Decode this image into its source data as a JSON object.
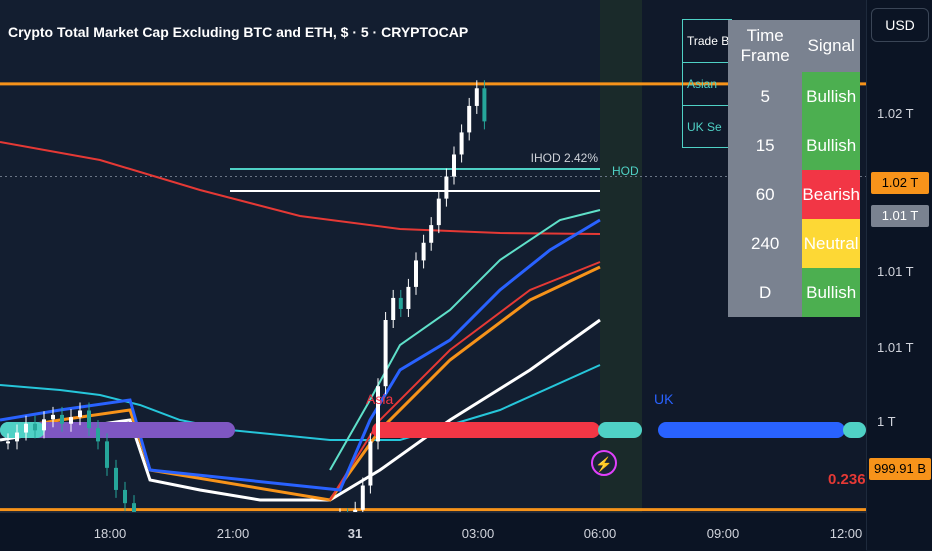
{
  "title": "Crypto Total Market Cap Excluding BTC and ETH, $ · 5 · CRYPTOCAP",
  "currency": "USD",
  "price_ticks": [
    "1.02 T",
    "1.01 T",
    "1.01 T",
    "1 T"
  ],
  "price_badges": [
    {
      "label": "1.02 T",
      "bg": "#f7931a",
      "fg": "#000000"
    },
    {
      "label": "1.01 T",
      "bg": "#7a8290",
      "fg": "#ffffff"
    },
    {
      "label": "999.91 B",
      "bg": "#f7931a",
      "fg": "#000000"
    }
  ],
  "time_ticks": [
    "18:00",
    "21:00",
    "31",
    "03:00",
    "06:00",
    "09:00",
    "12:00"
  ],
  "annotations": {
    "ihod": "IHOD 2.42%",
    "hod": "HOD",
    "fib": "0.236",
    "session_asia": "Asia",
    "session_uk": "UK"
  },
  "trade_box": {
    "header": "Trade By",
    "rows": [
      "Asian",
      "UK Se"
    ]
  },
  "signal_table": {
    "headers": [
      "Time Frame",
      "Signal"
    ],
    "rows": [
      {
        "tf": "5",
        "signal": "Bullish",
        "color": "#4caf50",
        "text": "#ffffff"
      },
      {
        "tf": "15",
        "signal": "Bullish",
        "color": "#4caf50",
        "text": "#ffffff"
      },
      {
        "tf": "60",
        "signal": "Bearish",
        "color": "#f23645",
        "text": "#ffffff"
      },
      {
        "tf": "240",
        "signal": "Neutral",
        "color": "#fdd835",
        "text": "#ffffff"
      },
      {
        "tf": "D",
        "signal": "Bullish",
        "color": "#4caf50",
        "text": "#ffffff"
      }
    ]
  },
  "colors": {
    "up": "#ffffff",
    "down": "#26a69a",
    "orange": "#f7931a",
    "red_ma": "#e53935",
    "blue_ma": "#2962ff",
    "teal_ma": "#26c6da",
    "asia_band": "#f23645",
    "uk_band": "#2962ff",
    "purple_band": "#7e57c2"
  },
  "chart_data": {
    "type": "candlestick",
    "title": "Crypto Total Market Cap Excluding BTC and ETH, $ · 5 · CRYPTOCAP",
    "y_unit": "USD",
    "ylim": [
      999800000000.0,
      1023000000000.0
    ],
    "x_ticks": [
      "18:00",
      "21:00",
      "31",
      "03:00",
      "06:00",
      "09:00",
      "12:00"
    ],
    "key_levels": {
      "hod": 1019200000000.0,
      "current": 1015000000000.0,
      "fib_0_236": 999910000000.0
    },
    "series": [
      {
        "name": "price_close",
        "values": [
          1003000000000.0,
          1003400000000.0,
          1003800000000.0,
          1003500000000.0,
          1004000000000.0,
          1004200000000.0,
          1003800000000.0,
          1004100000000.0,
          1004400000000.0,
          1003600000000.0,
          1003000000000.0,
          1001800000000.0,
          1000800000000.0,
          1000200000000.0,
          999800000000.0,
          999600000000.0,
          999300000000.0,
          999900000000.0,
          1001000000000.0,
          1003000000000.0,
          1005500000000.0,
          1008500000000.0,
          1009500000000.0,
          1009000000000.0,
          1010000000000.0,
          1011200000000.0,
          1012000000000.0,
          1012800000000.0,
          1014000000000.0,
          1015000000000.0,
          1016000000000.0,
          1017000000000.0,
          1018200000000.0,
          1019000000000.0,
          1017500000000.0
        ]
      }
    ]
  }
}
